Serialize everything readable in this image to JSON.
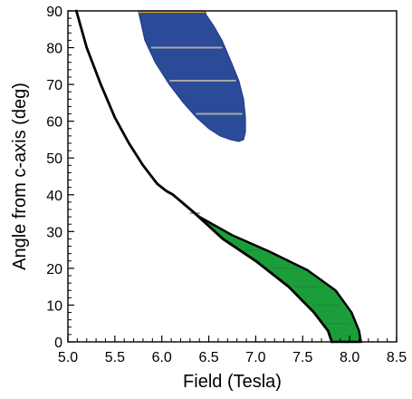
{
  "chart_data": {
    "type": "area",
    "title": "",
    "xlabel": "Field (Tesla)",
    "ylabel": "Angle from c-axis (deg)",
    "xlim": [
      5.0,
      8.5
    ],
    "ylim": [
      0,
      90
    ],
    "xticks": [
      "5.0",
      "5.5",
      "6.0",
      "6.5",
      "7.0",
      "7.5",
      "8.0",
      "8.5"
    ],
    "yticks": [
      "0",
      "10",
      "20",
      "30",
      "40",
      "50",
      "60",
      "70",
      "80",
      "90"
    ],
    "grid": false,
    "legend": "none",
    "colors": {
      "boundary_curve": "#000000",
      "blue_region": "#2b4a98",
      "blue_region_edge": "#243f88",
      "green_region": "#1b9e3a",
      "green_region_edge": "#000000",
      "hatch_light": "#a7a7a7",
      "hatch_dark": "#2d7d3c",
      "top_bar": "#d8a11e"
    },
    "series": [
      {
        "kind": "line",
        "x": [
          5.09,
          5.2,
          5.35,
          5.5,
          5.65,
          5.8,
          5.95,
          6.05,
          6.12,
          6.35,
          6.65,
          7.0,
          7.35,
          7.62,
          7.77,
          7.81
        ],
        "y": [
          90,
          80,
          70,
          61,
          54,
          48,
          43,
          41,
          40,
          35,
          28,
          22,
          15,
          8,
          3,
          0
        ]
      },
      {
        "kind": "band",
        "lower_boundary": {
          "x": [
            6.12,
            6.35,
            6.65,
            7.0,
            7.35,
            7.62,
            7.77,
            7.81
          ],
          "y": [
            40,
            35,
            28,
            22,
            15,
            8,
            3,
            0
          ]
        },
        "upper_boundary": {
          "x": [
            6.12,
            6.4,
            6.75,
            7.15,
            7.55,
            7.85,
            8.02,
            8.1,
            8.12
          ],
          "y": [
            40,
            34,
            29,
            24.5,
            19.5,
            14,
            8,
            3,
            0
          ]
        },
        "hatches_y": [
          5,
          10,
          15,
          20,
          25,
          30,
          35
        ]
      },
      {
        "kind": "region",
        "boundary": {
          "x": [
            5.75,
            5.82,
            5.93,
            6.08,
            6.23,
            6.37,
            6.5,
            6.62,
            6.73,
            6.82,
            6.87,
            6.89,
            6.89,
            6.87,
            6.82,
            6.74,
            6.64,
            6.55,
            6.47,
            6.46
          ],
          "y": [
            90,
            82,
            76,
            70,
            65,
            61,
            58,
            56,
            55,
            54.5,
            55,
            57,
            61,
            66,
            71,
            76,
            82,
            86,
            89,
            90
          ]
        },
        "hatches_y": [
          62,
          71,
          80
        ],
        "top_bar_range_x": [
          5.75,
          6.46
        ]
      }
    ]
  }
}
